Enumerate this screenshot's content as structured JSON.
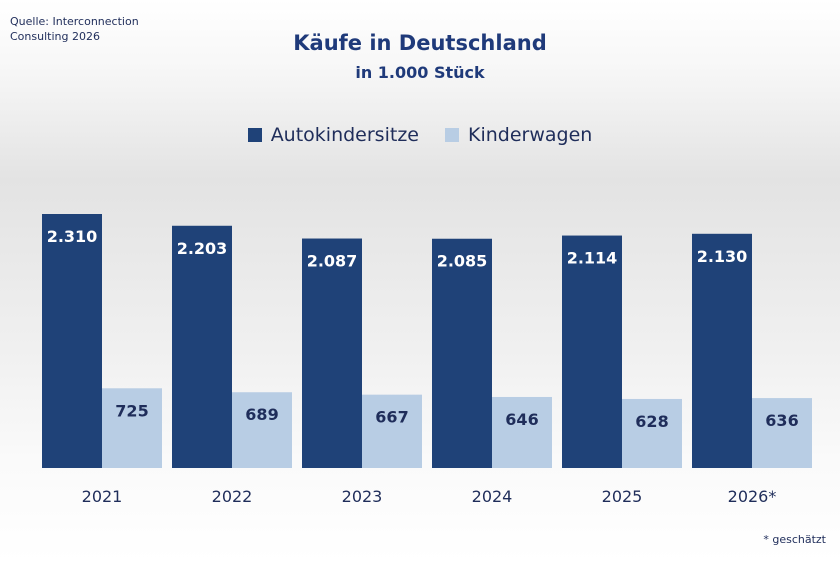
{
  "source_text": "Quelle: Interconnection Consulting 2026",
  "footnote": "* geschätzt",
  "colors": {
    "series1": "#1f4278",
    "series2": "#b8cde4",
    "text": "#1f2d5a"
  },
  "chart_data": {
    "type": "bar",
    "title": "Käufe in Deutschland",
    "subtitle": "in 1.000 Stück",
    "categories": [
      "2021",
      "2022",
      "2023",
      "2024",
      "2025",
      "2026*"
    ],
    "series": [
      {
        "name": "Autokindersitze",
        "values": [
          2310,
          2203,
          2087,
          2085,
          2114,
          2130
        ],
        "labels": [
          "2.310",
          "2.203",
          "2.087",
          "2.085",
          "2.114",
          "2.130"
        ]
      },
      {
        "name": "Kinderwagen",
        "values": [
          725,
          689,
          667,
          646,
          628,
          636
        ],
        "labels": [
          "725",
          "689",
          "667",
          "646",
          "628",
          "636"
        ]
      }
    ],
    "ylim": [
      0,
      2310
    ],
    "grid": false,
    "legend_position": "top-center"
  }
}
